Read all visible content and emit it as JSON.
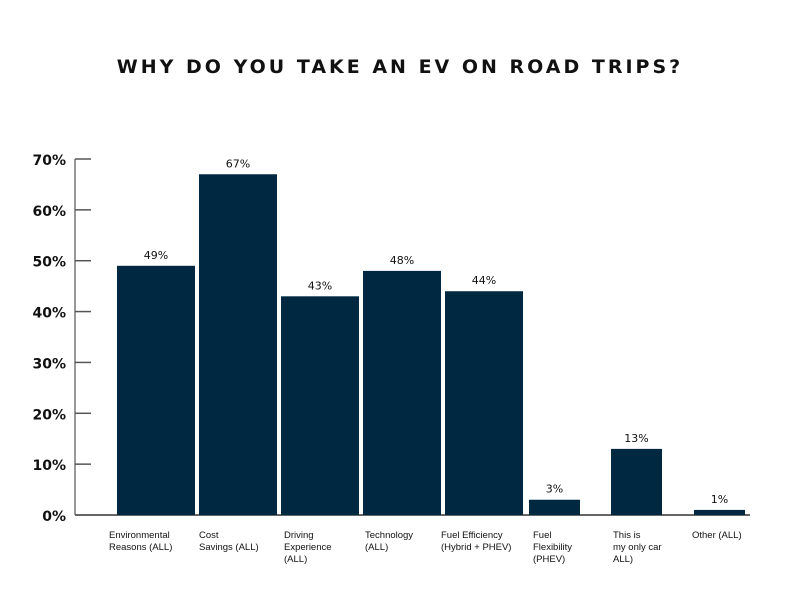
{
  "chart_data": {
    "type": "bar",
    "title": "WHY DO YOU TAKE AN EV ON ROAD TRIPS?",
    "xlabel": "",
    "ylabel": "",
    "ylim": [
      0,
      70
    ],
    "yticks": [
      "0%",
      "10%",
      "20%",
      "30%",
      "40%",
      "50%",
      "60%",
      "70%"
    ],
    "categories": [
      "Environmental\nReasons (ALL)",
      "Cost\nSavings (ALL)",
      "Driving\nExperience\n(ALL)",
      "Technology\n(ALL)",
      "Fuel Efficiency\n(Hybrid + PHEV)",
      "Fuel\nFlexibility\n(PHEV)",
      "This is\nmy only car\nALL)",
      "Other (ALL)"
    ],
    "values": [
      49,
      67,
      43,
      48,
      44,
      3,
      13,
      1
    ],
    "data_labels": [
      "49%",
      "67%",
      "43%",
      "48%",
      "44%",
      "3%",
      "13%",
      "1%"
    ],
    "bar_color": "#002840",
    "grid": false
  }
}
